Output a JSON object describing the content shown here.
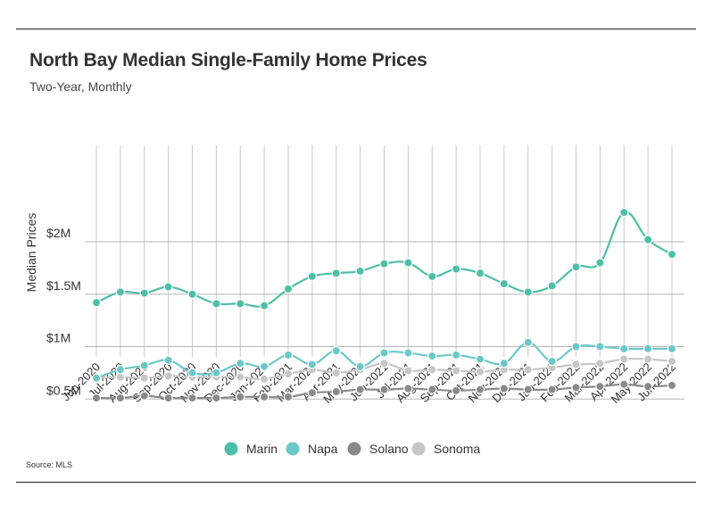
{
  "title": "North Bay Median Single-Family Home Prices",
  "subtitle": "Two-Year, Monthly",
  "source": "Source:  MLS",
  "chart_data": {
    "type": "line",
    "ylabel": "Median Prices",
    "xlabel": "",
    "ylim": [
      350000,
      2400000
    ],
    "yticks": [
      500000,
      1000000,
      1500000,
      2000000
    ],
    "ytick_labels": [
      "$0.5M",
      "$1M",
      "$1.5M",
      "$2M"
    ],
    "categories": [
      "Jun-2020",
      "Jul-2020",
      "Aug-2020",
      "Sep-2020",
      "Oct-2020",
      "Nov-2020",
      "Dec-2020",
      "Jan-2021",
      "Feb-2021",
      "Mar-2021",
      "Apr-2021",
      "May-2021",
      "Jun-2021",
      "Jul-2021",
      "Aug-2021",
      "Sep-2021",
      "Oct-2021",
      "Nov-2021",
      "Dec-2021",
      "Jan-2022",
      "Feb-2022",
      "Mar-2022",
      "Apr-2022",
      "May-2022",
      "Jun-2022"
    ],
    "grid": "vertical lines at categories, horizontal lines at y ticks",
    "legend_position": "bottom-center",
    "series": [
      {
        "name": "Marin",
        "color": "#4dbfa8",
        "values": [
          1420000,
          1520000,
          1510000,
          1570000,
          1500000,
          1410000,
          1410000,
          1390000,
          1550000,
          1670000,
          1700000,
          1720000,
          1790000,
          1800000,
          1670000,
          1740000,
          1700000,
          1600000,
          1520000,
          1580000,
          1760000,
          1800000,
          2280000,
          2020000,
          1880000
        ]
      },
      {
        "name": "Napa",
        "color": "#6cc8c8",
        "values": [
          700000,
          780000,
          820000,
          870000,
          750000,
          750000,
          840000,
          810000,
          920000,
          830000,
          960000,
          810000,
          940000,
          940000,
          910000,
          920000,
          880000,
          840000,
          1040000,
          860000,
          1000000,
          1000000,
          980000,
          980000,
          980000
        ]
      },
      {
        "name": "Solano",
        "color": "#8a8a8a",
        "values": [
          510000,
          510000,
          530000,
          510000,
          510000,
          510000,
          520000,
          520000,
          520000,
          560000,
          570000,
          590000,
          590000,
          600000,
          590000,
          580000,
          590000,
          600000,
          590000,
          590000,
          610000,
          620000,
          640000,
          620000,
          630000
        ]
      },
      {
        "name": "Sonoma",
        "color": "#c6c6c6",
        "values": [
          700000,
          710000,
          700000,
          720000,
          710000,
          710000,
          710000,
          690000,
          740000,
          780000,
          750000,
          780000,
          840000,
          770000,
          780000,
          770000,
          760000,
          780000,
          780000,
          800000,
          830000,
          840000,
          880000,
          880000,
          860000
        ]
      }
    ]
  }
}
